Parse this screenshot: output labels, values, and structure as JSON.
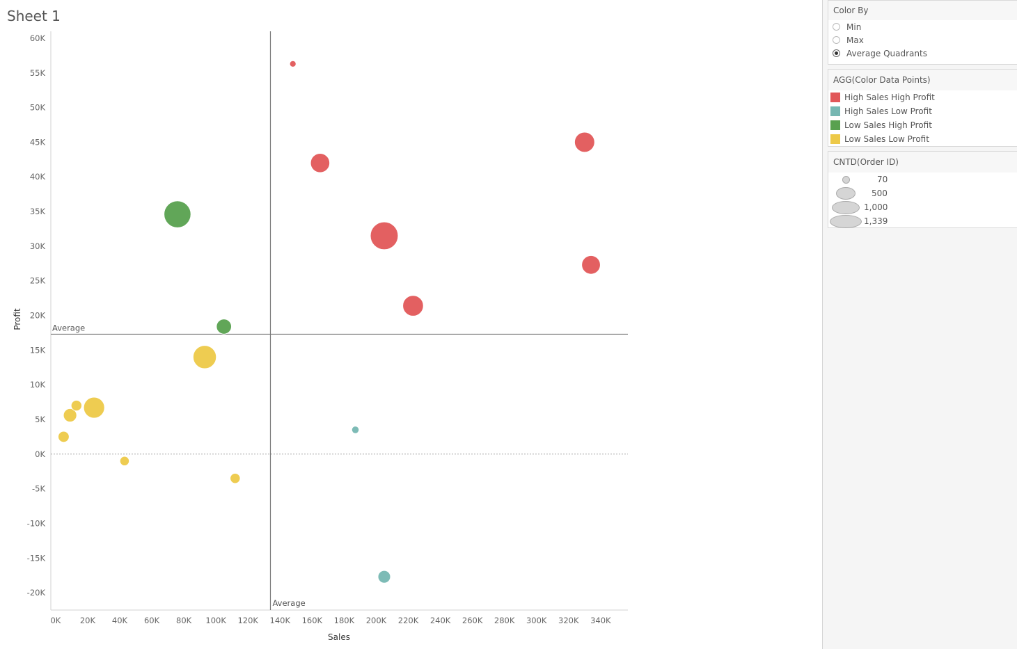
{
  "sheet": {
    "title": "Sheet 1"
  },
  "chart_data": {
    "type": "scatter",
    "xlabel": "Sales",
    "ylabel": "Profit",
    "xlim": [
      -3000,
      357000
    ],
    "ylim": [
      -22500,
      61000
    ],
    "x_ticks": [
      0,
      20000,
      40000,
      60000,
      80000,
      100000,
      120000,
      140000,
      160000,
      180000,
      200000,
      220000,
      240000,
      260000,
      280000,
      300000,
      320000,
      340000
    ],
    "x_tick_labels": [
      "0K",
      "20K",
      "40K",
      "60K",
      "80K",
      "100K",
      "120K",
      "140K",
      "160K",
      "180K",
      "200K",
      "220K",
      "240K",
      "260K",
      "280K",
      "300K",
      "320K",
      "340K"
    ],
    "y_ticks": [
      60000,
      55000,
      50000,
      45000,
      40000,
      35000,
      30000,
      25000,
      20000,
      15000,
      10000,
      5000,
      0,
      -5000,
      -10000,
      -15000,
      -20000
    ],
    "y_tick_labels": [
      "60K",
      "55K",
      "50K",
      "45K",
      "40K",
      "35K",
      "30K",
      "25K",
      "20K",
      "15K",
      "10K",
      "5K",
      "0K",
      "-5K",
      "-10K",
      "-15K",
      "-20K"
    ],
    "reference_lines": {
      "x_average": {
        "value": 134000,
        "label": "Average"
      },
      "y_average": {
        "value": 17300,
        "label": "Average"
      }
    },
    "zero_line": true,
    "grid": false,
    "size_field": "CNTD(Order ID)",
    "points": [
      {
        "sales": 148000,
        "profit": 56300,
        "count": 70,
        "group": "High Sales High Profit"
      },
      {
        "sales": 165000,
        "profit": 42000,
        "count": 540,
        "group": "High Sales High Profit"
      },
      {
        "sales": 330000,
        "profit": 45000,
        "count": 590,
        "group": "High Sales High Profit"
      },
      {
        "sales": 205000,
        "profit": 31500,
        "count": 1100,
        "group": "High Sales High Profit"
      },
      {
        "sales": 334000,
        "profit": 27300,
        "count": 510,
        "group": "High Sales High Profit"
      },
      {
        "sales": 223000,
        "profit": 21400,
        "count": 620,
        "group": "High Sales High Profit"
      },
      {
        "sales": 187000,
        "profit": 3500,
        "count": 90,
        "group": "High Sales Low Profit"
      },
      {
        "sales": 205000,
        "profit": -17700,
        "count": 240,
        "group": "High Sales Low Profit"
      },
      {
        "sales": 76000,
        "profit": 34600,
        "count": 1030,
        "group": "Low Sales High Profit"
      },
      {
        "sales": 105000,
        "profit": 18400,
        "count": 340,
        "group": "Low Sales High Profit"
      },
      {
        "sales": 93000,
        "profit": 14000,
        "count": 780,
        "group": "Low Sales Low Profit"
      },
      {
        "sales": 24000,
        "profit": 6700,
        "count": 640,
        "group": "Low Sales Low Profit"
      },
      {
        "sales": 13000,
        "profit": 7000,
        "count": 180,
        "group": "Low Sales Low Profit"
      },
      {
        "sales": 9000,
        "profit": 5600,
        "count": 270,
        "group": "Low Sales Low Profit"
      },
      {
        "sales": 5000,
        "profit": 2500,
        "count": 190,
        "group": "Low Sales Low Profit"
      },
      {
        "sales": 43000,
        "profit": -1000,
        "count": 140,
        "group": "Low Sales Low Profit"
      },
      {
        "sales": 112000,
        "profit": -3500,
        "count": 160,
        "group": "Low Sales Low Profit"
      }
    ],
    "colors": {
      "High Sales High Profit": "#e15759",
      "High Sales Low Profit": "#76b7b2",
      "Low Sales High Profit": "#59a14f",
      "Low Sales Low Profit": "#edc948"
    }
  },
  "side_panel": {
    "color_by": {
      "title": "Color By",
      "options": [
        {
          "label": "Min",
          "selected": false
        },
        {
          "label": "Max",
          "selected": false
        },
        {
          "label": "Average Quadrants",
          "selected": true
        }
      ]
    },
    "color_legend": {
      "title": "AGG(Color Data Points)",
      "items": [
        {
          "label": "High Sales High Profit",
          "color": "#e15759"
        },
        {
          "label": "High Sales Low Profit",
          "color": "#76b7b2"
        },
        {
          "label": "Low Sales High Profit",
          "color": "#59a14f"
        },
        {
          "label": "Low Sales Low Profit",
          "color": "#edc948"
        }
      ]
    },
    "size_legend": {
      "title": "CNTD(Order ID)",
      "items": [
        {
          "label": "70",
          "value": 70
        },
        {
          "label": "500",
          "value": 500
        },
        {
          "label": "1,000",
          "value": 1000
        },
        {
          "label": "1,339",
          "value": 1339
        }
      ]
    }
  }
}
